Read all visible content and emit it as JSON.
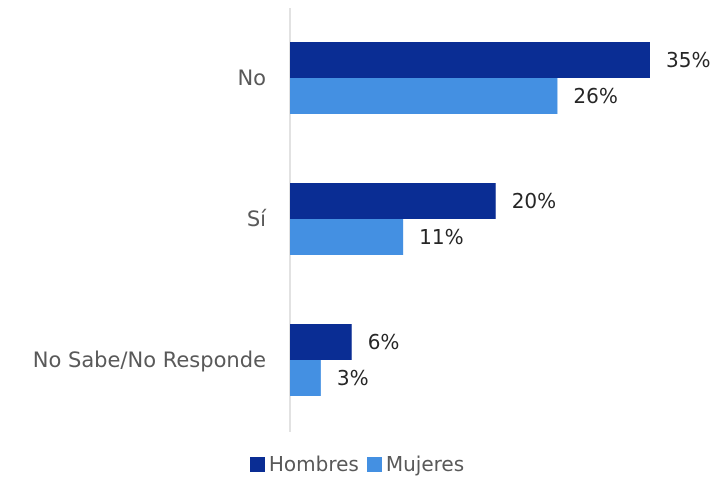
{
  "chart_data": {
    "type": "bar",
    "orientation": "horizontal",
    "categories": [
      "No",
      "Sí",
      "No Sabe/No Responde"
    ],
    "series": [
      {
        "name": "Hombres",
        "values": [
          35,
          20,
          6
        ],
        "labels": [
          "35%",
          "20%",
          "6%"
        ],
        "color": "#0a2d94"
      },
      {
        "name": "Mujeres",
        "values": [
          26,
          11,
          3
        ],
        "labels": [
          "26%",
          "11%",
          "3%"
        ],
        "color": "#4490e2"
      }
    ],
    "xlim": [
      0,
      35
    ],
    "unit": "%",
    "grid": false,
    "legend": "bottom",
    "title": "",
    "xlabel": "",
    "ylabel": ""
  }
}
